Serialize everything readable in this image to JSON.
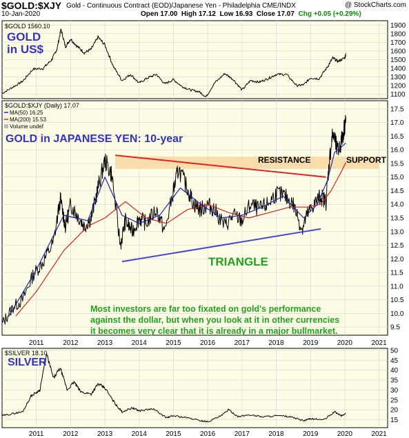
{
  "header": {
    "symbol": "$GOLD:$XJY",
    "description": "Gold - Continuous Contract (EOD)/Japanese Yen - Philadelphia CME/INDX",
    "watermark": "@ StockCharts.com",
    "date": "10-Jan-2020",
    "open_label": "Open 17.00",
    "high_label": "High 17.12",
    "low_label": "Low 16.93",
    "close_label": "Close 17.07",
    "chg_label": "Chg +0.05 (+0.29%)"
  },
  "colors": {
    "panel_bg": "#fdfde6",
    "grid": "#d8d8d8",
    "annotation_blue": "#3333bb",
    "annotation_green": "#22a022",
    "resistance_line": "#dd2222",
    "support_line": "#4444cc",
    "band": "#f8d8a0",
    "ma50": "#2222aa",
    "ma200": "#cc2222"
  },
  "chart_data": [
    {
      "type": "line",
      "panel": "top",
      "legend": "$GOLD 1560.10",
      "annotation": [
        "GOLD",
        "in US$"
      ],
      "ylim": [
        1050,
        1950
      ],
      "yticks": [
        1100,
        1200,
        1300,
        1400,
        1500,
        1600,
        1700,
        1800,
        1900
      ],
      "x": [
        2010.0,
        2010.3,
        2010.6,
        2010.9,
        2011.2,
        2011.45,
        2011.6,
        2011.72,
        2011.85,
        2012.0,
        2012.2,
        2012.4,
        2012.6,
        2012.8,
        2013.0,
        2013.25,
        2013.5,
        2013.75,
        2014.0,
        2014.25,
        2014.5,
        2014.75,
        2015.0,
        2015.25,
        2015.5,
        2015.75,
        2015.95,
        2016.2,
        2016.5,
        2016.75,
        2017.0,
        2017.25,
        2017.5,
        2017.75,
        2018.0,
        2018.3,
        2018.6,
        2018.8,
        2019.0,
        2019.25,
        2019.5,
        2019.65,
        2019.8,
        2020.0,
        2020.03
      ],
      "y": [
        1110,
        1180,
        1250,
        1390,
        1400,
        1500,
        1620,
        1850,
        1650,
        1740,
        1650,
        1580,
        1620,
        1760,
        1670,
        1420,
        1260,
        1330,
        1230,
        1290,
        1330,
        1220,
        1270,
        1190,
        1150,
        1130,
        1070,
        1230,
        1340,
        1270,
        1150,
        1260,
        1240,
        1280,
        1330,
        1330,
        1200,
        1210,
        1290,
        1280,
        1420,
        1520,
        1480,
        1520,
        1560
      ]
    },
    {
      "type": "line",
      "panel": "main",
      "title": "GOLD in JAPANESE YEN: 10-year",
      "legend": [
        "$GOLD:$XJY (Daily) 17.07",
        "MA(50) 16.25",
        "MA(200) 15.53",
        "Volume undef"
      ],
      "ylim": [
        9.2,
        17.8
      ],
      "yticks": [
        9.5,
        10.0,
        10.5,
        11.0,
        11.5,
        12.0,
        12.5,
        13.0,
        13.5,
        14.0,
        14.5,
        15.0,
        15.5,
        16.0,
        16.5,
        17.0,
        17.5
      ],
      "xticks": [
        "2011",
        "2012",
        "2013",
        "2014",
        "2015",
        "2016",
        "2017",
        "2018",
        "2019",
        "2020",
        "2021"
      ],
      "x": [
        2010.0,
        2010.3,
        2010.6,
        2010.9,
        2011.2,
        2011.5,
        2011.7,
        2011.85,
        2012.0,
        2012.2,
        2012.4,
        2012.6,
        2012.8,
        2013.0,
        2013.2,
        2013.45,
        2013.6,
        2013.8,
        2014.0,
        2014.2,
        2014.5,
        2014.75,
        2015.0,
        2015.15,
        2015.4,
        2015.6,
        2015.8,
        2016.0,
        2016.2,
        2016.5,
        2016.75,
        2017.0,
        2017.25,
        2017.5,
        2017.75,
        2018.0,
        2018.25,
        2018.5,
        2018.75,
        2018.9,
        2019.1,
        2019.3,
        2019.45,
        2019.55,
        2019.65,
        2019.8,
        2019.9,
        2020.0,
        2020.03
      ],
      "y": [
        9.6,
        10.2,
        10.5,
        11.4,
        11.9,
        12.6,
        14.2,
        13.2,
        14.0,
        13.6,
        13.2,
        13.5,
        14.6,
        15.6,
        15.1,
        12.5,
        13.4,
        13.0,
        13.5,
        13.3,
        13.8,
        13.0,
        14.5,
        15.3,
        14.6,
        14.0,
        13.8,
        14.0,
        13.8,
        13.2,
        13.6,
        13.4,
        14.0,
        13.8,
        14.0,
        14.4,
        14.3,
        14.0,
        13.1,
        13.6,
        14.0,
        14.3,
        14.1,
        15.6,
        16.6,
        15.9,
        16.3,
        16.9,
        17.07
      ],
      "ma50_x": [
        2010.2,
        2011.0,
        2011.8,
        2012.5,
        2013.0,
        2013.5,
        2014.0,
        2014.6,
        2015.2,
        2015.8,
        2016.4,
        2017.0,
        2017.6,
        2018.2,
        2018.8,
        2019.2,
        2019.5,
        2019.7,
        2019.9,
        2020.03
      ],
      "ma50_y": [
        9.9,
        11.6,
        13.6,
        13.4,
        15.0,
        13.6,
        13.3,
        13.6,
        14.6,
        14.0,
        13.5,
        13.6,
        13.9,
        14.3,
        13.5,
        14.0,
        14.9,
        15.9,
        16.1,
        16.25
      ],
      "ma200_x": [
        2010.4,
        2011.0,
        2011.8,
        2012.5,
        2013.0,
        2013.6,
        2014.2,
        2014.8,
        2015.4,
        2016.0,
        2016.6,
        2017.2,
        2017.8,
        2018.4,
        2018.9,
        2019.3,
        2019.6,
        2019.9,
        2020.03
      ],
      "ma200_y": [
        9.9,
        10.8,
        12.3,
        13.2,
        13.5,
        14.1,
        13.5,
        13.3,
        13.8,
        14.0,
        13.7,
        13.5,
        13.7,
        13.9,
        13.9,
        14.0,
        14.5,
        15.2,
        15.53
      ],
      "resistance_line": {
        "x": [
          2013.3,
          2019.45
        ],
        "y": [
          15.8,
          15.0
        ]
      },
      "support_line": {
        "x": [
          2013.5,
          2019.3
        ],
        "y": [
          11.9,
          13.1
        ]
      },
      "band": {
        "x0": 2013.3,
        "x1": 2021.0,
        "y0": 15.3,
        "y1": 15.75
      },
      "labels": {
        "resistance": "RESISTANCE",
        "support": "SUPPORT",
        "triangle": "TRIANGLE"
      },
      "commentary": [
        "Most investors are far too fixated on gold's performance",
        "against the dollar, but when you look at it in other currencies",
        "it becomes very clear that it is already in a major bullmarket."
      ]
    },
    {
      "type": "line",
      "panel": "bottom",
      "legend": "$SILVER 18.10",
      "annotation": "SILVER",
      "ylim": [
        11,
        51
      ],
      "yticks": [
        15,
        20,
        25,
        30,
        35,
        40,
        45,
        50
      ],
      "xticks": [
        "2011",
        "2012",
        "2013",
        "2014",
        "2015",
        "2016",
        "2017",
        "2018",
        "2019",
        "2020",
        "2021"
      ],
      "x": [
        2010.0,
        2010.3,
        2010.6,
        2010.85,
        2011.1,
        2011.3,
        2011.5,
        2011.7,
        2011.9,
        2012.1,
        2012.3,
        2012.6,
        2012.8,
        2013.0,
        2013.3,
        2013.5,
        2013.8,
        2014.0,
        2014.4,
        2014.8,
        2015.0,
        2015.4,
        2015.8,
        2016.0,
        2016.4,
        2016.6,
        2016.9,
        2017.2,
        2017.6,
        2018.0,
        2018.4,
        2018.8,
        2019.0,
        2019.4,
        2019.7,
        2019.9,
        2020.03
      ],
      "y": [
        17,
        18,
        19,
        27,
        30,
        48,
        36,
        41,
        30,
        34,
        29,
        28,
        33,
        31,
        23,
        19,
        21,
        19.5,
        20.5,
        16,
        17,
        16,
        14.5,
        14,
        17,
        20,
        16.5,
        17.5,
        16.5,
        17,
        16.5,
        14.5,
        15.5,
        15,
        19,
        17,
        18.1
      ]
    }
  ]
}
